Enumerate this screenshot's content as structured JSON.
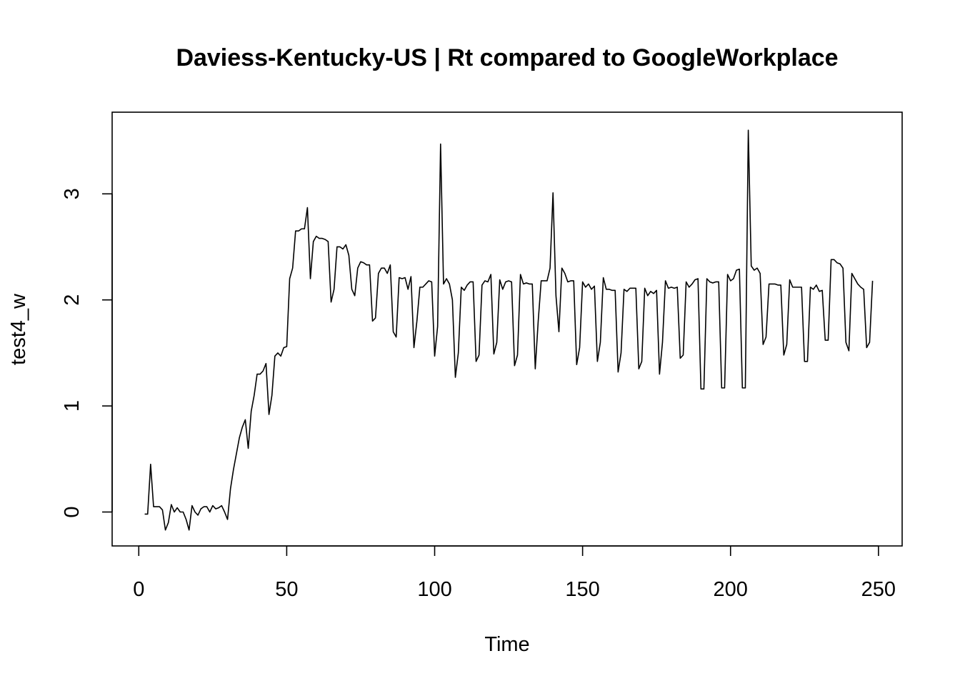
{
  "chart_data": {
    "type": "line",
    "title": "Daviess-Kentucky-US | Rt compared to GoogleWorkplace",
    "xlabel": "Time",
    "ylabel": "test4_w",
    "xlim": [
      -9,
      258
    ],
    "ylim": [
      -0.32,
      3.77
    ],
    "xticks": [
      0,
      50,
      100,
      150,
      200,
      250
    ],
    "yticks": [
      0,
      1,
      2,
      3
    ],
    "grid": false,
    "legend": false,
    "series": [
      {
        "color": "#000000",
        "x": [
          2,
          3,
          4,
          5,
          6,
          7,
          8,
          9,
          10,
          11,
          12,
          13,
          14,
          15,
          16,
          17,
          18,
          19,
          20,
          21,
          22,
          23,
          24,
          25,
          26,
          27,
          28,
          29,
          30,
          31,
          32,
          33,
          34,
          35,
          36,
          37,
          38,
          39,
          40,
          41,
          42,
          43,
          44,
          45,
          46,
          47,
          48,
          49,
          50,
          51,
          52,
          53,
          54,
          55,
          56,
          57,
          58,
          59,
          60,
          61,
          62,
          63,
          64,
          65,
          66,
          67,
          68,
          69,
          70,
          71,
          72,
          73,
          74,
          75,
          76,
          77,
          78,
          79,
          80,
          81,
          82,
          83,
          84,
          85,
          86,
          87,
          88,
          89,
          90,
          91,
          92,
          93,
          94,
          95,
          96,
          97,
          98,
          99,
          100,
          101,
          102,
          103,
          104,
          105,
          106,
          107,
          108,
          109,
          110,
          111,
          112,
          113,
          114,
          115,
          116,
          117,
          118,
          119,
          120,
          121,
          122,
          123,
          124,
          125,
          126,
          127,
          128,
          129,
          130,
          131,
          132,
          133,
          134,
          135,
          136,
          137,
          138,
          139,
          140,
          141,
          142,
          143,
          144,
          145,
          146,
          147,
          148,
          149,
          150,
          151,
          152,
          153,
          154,
          155,
          156,
          157,
          158,
          159,
          160,
          161,
          162,
          163,
          164,
          165,
          166,
          167,
          168,
          169,
          170,
          171,
          172,
          173,
          174,
          175,
          176,
          177,
          178,
          179,
          180,
          181,
          182,
          183,
          184,
          185,
          186,
          187,
          188,
          189,
          190,
          191,
          192,
          193,
          194,
          195,
          196,
          197,
          198,
          199,
          200,
          201,
          202,
          203,
          204,
          205,
          206,
          207,
          208,
          209,
          210,
          211,
          212,
          213,
          214,
          215,
          216,
          217,
          218,
          219,
          220,
          221,
          222,
          223,
          224,
          225,
          226,
          227,
          228,
          229,
          230,
          231,
          232,
          233,
          234,
          235,
          236,
          237,
          238,
          239,
          240,
          241,
          242,
          243,
          244,
          245,
          246,
          247,
          248
        ],
        "y": [
          -0.02,
          -0.02,
          0.45,
          0.05,
          0.05,
          0.05,
          0.02,
          -0.17,
          -0.1,
          0.07,
          0.0,
          0.04,
          0.0,
          0.0,
          -0.07,
          -0.17,
          0.06,
          0.0,
          -0.03,
          0.03,
          0.05,
          0.05,
          0.0,
          0.06,
          0.03,
          0.04,
          0.06,
          0.0,
          -0.07,
          0.22,
          0.4,
          0.55,
          0.7,
          0.8,
          0.87,
          0.6,
          0.95,
          1.1,
          1.3,
          1.3,
          1.33,
          1.4,
          0.92,
          1.1,
          1.47,
          1.5,
          1.47,
          1.55,
          1.56,
          2.2,
          2.3,
          2.65,
          2.65,
          2.67,
          2.67,
          2.87,
          2.2,
          2.55,
          2.6,
          2.58,
          2.58,
          2.57,
          2.55,
          1.98,
          2.1,
          2.5,
          2.5,
          2.48,
          2.52,
          2.42,
          2.1,
          2.04,
          2.3,
          2.36,
          2.35,
          2.33,
          2.33,
          1.8,
          1.83,
          2.25,
          2.3,
          2.3,
          2.25,
          2.33,
          1.7,
          1.65,
          2.21,
          2.2,
          2.21,
          2.1,
          2.22,
          1.55,
          1.8,
          2.12,
          2.12,
          2.15,
          2.18,
          2.17,
          1.47,
          1.75,
          3.47,
          2.15,
          2.2,
          2.15,
          2.0,
          1.27,
          1.5,
          2.12,
          2.09,
          2.14,
          2.17,
          2.17,
          1.42,
          1.48,
          2.14,
          2.18,
          2.17,
          2.24,
          1.49,
          1.6,
          2.19,
          2.1,
          2.17,
          2.18,
          2.17,
          1.38,
          1.48,
          2.24,
          2.15,
          2.16,
          2.15,
          2.15,
          1.35,
          1.8,
          2.18,
          2.18,
          2.18,
          2.3,
          3.01,
          2.04,
          1.7,
          2.3,
          2.25,
          2.17,
          2.18,
          2.18,
          1.39,
          1.55,
          2.17,
          2.12,
          2.15,
          2.1,
          2.13,
          1.42,
          1.6,
          2.21,
          2.1,
          2.1,
          2.09,
          2.09,
          1.32,
          1.5,
          2.1,
          2.08,
          2.11,
          2.11,
          2.11,
          1.35,
          1.42,
          2.11,
          2.04,
          2.08,
          2.06,
          2.09,
          1.3,
          1.6,
          2.18,
          2.11,
          2.12,
          2.11,
          2.12,
          1.45,
          1.48,
          2.17,
          2.12,
          2.15,
          2.19,
          2.2,
          1.16,
          1.16,
          2.2,
          2.17,
          2.16,
          2.17,
          2.17,
          1.17,
          1.17,
          2.24,
          2.18,
          2.2,
          2.28,
          2.29,
          1.17,
          1.17,
          3.6,
          2.32,
          2.28,
          2.3,
          2.25,
          1.58,
          1.65,
          2.15,
          2.15,
          2.15,
          2.14,
          2.14,
          1.48,
          1.58,
          2.19,
          2.12,
          2.12,
          2.12,
          2.12,
          1.42,
          1.42,
          2.12,
          2.1,
          2.14,
          2.08,
          2.09,
          1.62,
          1.62,
          2.38,
          2.38,
          2.35,
          2.34,
          2.3,
          1.6,
          1.52,
          2.25,
          2.2,
          2.15,
          2.12,
          2.1,
          1.55,
          1.6,
          2.18
        ]
      }
    ]
  }
}
